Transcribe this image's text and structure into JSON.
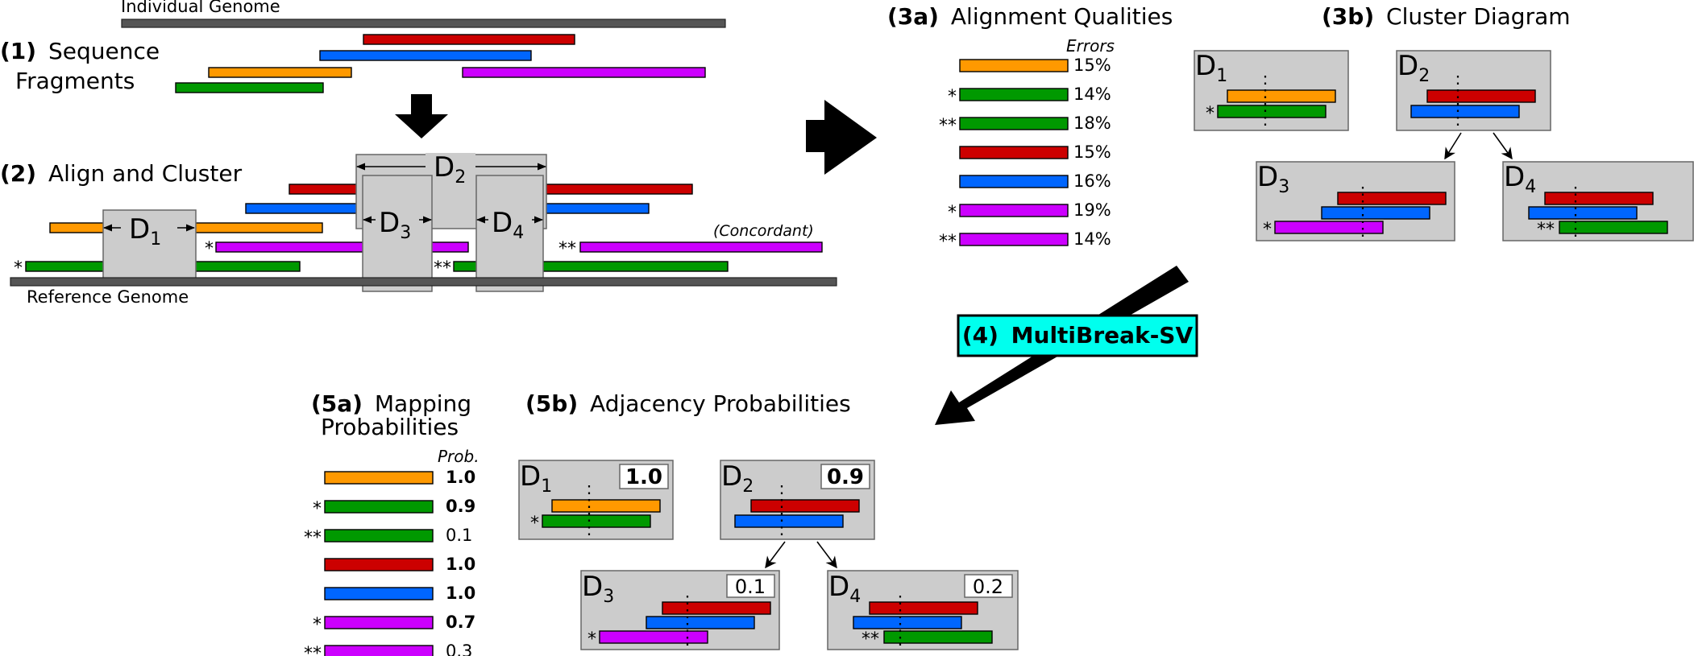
{
  "colors": {
    "orange": "#ff9900",
    "red": "#cc0000",
    "blue": "#0066ff",
    "magenta": "#cc00ff",
    "green": "#009900",
    "cyan_label": "#00ffee",
    "box_gray": "#cccccc",
    "genome_gray": "#555555"
  },
  "step1": {
    "num": "(1)",
    "title_line1": "Sequence",
    "title_line2": "Fragments",
    "genome_label": "Individual Genome"
  },
  "step2": {
    "num": "(2)",
    "title": "Align and Cluster",
    "reference_label": "Reference Genome",
    "concordant_label": "(Concordant)",
    "star1": "*",
    "star2": "**",
    "clusters": [
      "D",
      "D",
      "D",
      "D"
    ],
    "cluster_subs": [
      "1",
      "2",
      "3",
      "4"
    ]
  },
  "step3a": {
    "num": "(3a)",
    "title": "Alignment Qualities",
    "errors_header": "Errors",
    "rows": [
      {
        "marker": "",
        "color": "orange",
        "value": "15%"
      },
      {
        "marker": "*",
        "color": "green",
        "value": "14%"
      },
      {
        "marker": "**",
        "color": "green",
        "value": "18%"
      },
      {
        "marker": "",
        "color": "red",
        "value": "15%"
      },
      {
        "marker": "",
        "color": "blue",
        "value": "16%"
      },
      {
        "marker": "*",
        "color": "magenta",
        "value": "19%"
      },
      {
        "marker": "**",
        "color": "magenta",
        "value": "14%"
      }
    ]
  },
  "step3b": {
    "num": "(3b)",
    "title": "Cluster Diagram"
  },
  "step4": {
    "num": "(4)",
    "title": "MultiBreak-SV"
  },
  "step5a": {
    "num": "(5a)",
    "title_line1": "Mapping",
    "title_line2": "Probabilities",
    "prob_header": "Prob.",
    "rows": [
      {
        "marker": "",
        "color": "orange",
        "value": "1.0",
        "bold": true
      },
      {
        "marker": "*",
        "color": "green",
        "value": "0.9",
        "bold": true
      },
      {
        "marker": "**",
        "color": "green",
        "value": "0.1",
        "bold": false
      },
      {
        "marker": "",
        "color": "red",
        "value": "1.0",
        "bold": true
      },
      {
        "marker": "",
        "color": "blue",
        "value": "1.0",
        "bold": true
      },
      {
        "marker": "*",
        "color": "magenta",
        "value": "0.7",
        "bold": true
      },
      {
        "marker": "**",
        "color": "magenta",
        "value": "0.3",
        "bold": false
      }
    ]
  },
  "step5b": {
    "num": "(5b)",
    "title": "Adjacency Probabilities",
    "clusters": [
      {
        "letter": "D",
        "sub": "1",
        "prob": "1.0",
        "bold": true
      },
      {
        "letter": "D",
        "sub": "2",
        "prob": "0.9",
        "bold": true
      },
      {
        "letter": "D",
        "sub": "3",
        "prob": "0.1",
        "bold": false
      },
      {
        "letter": "D",
        "sub": "4",
        "prob": "0.2",
        "bold": false
      }
    ]
  }
}
